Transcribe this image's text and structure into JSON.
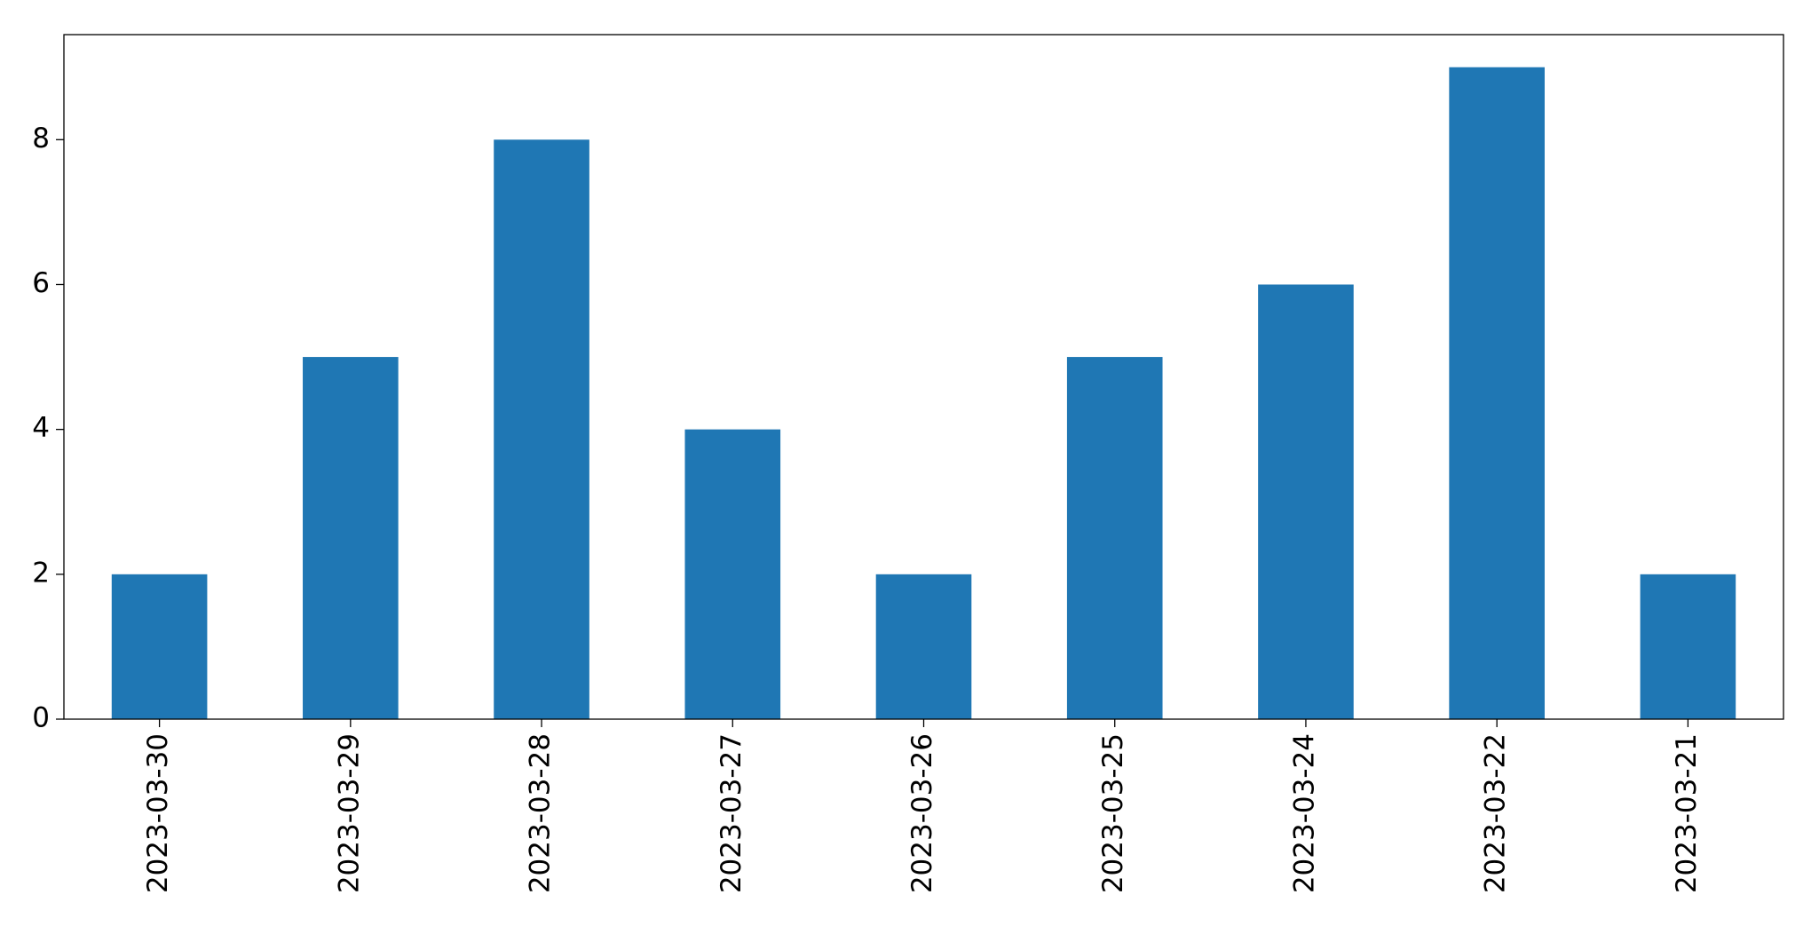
{
  "chart_data": {
    "type": "bar",
    "categories": [
      "2023-03-30",
      "2023-03-29",
      "2023-03-28",
      "2023-03-27",
      "2023-03-26",
      "2023-03-25",
      "2023-03-24",
      "2023-03-22",
      "2023-03-21"
    ],
    "values": [
      2,
      5,
      8,
      4,
      2,
      5,
      6,
      9,
      2
    ],
    "color": "#1f77b4",
    "ylim": [
      0,
      9.45
    ],
    "yticks": [
      0,
      2,
      4,
      6,
      8
    ],
    "grid": false
  }
}
